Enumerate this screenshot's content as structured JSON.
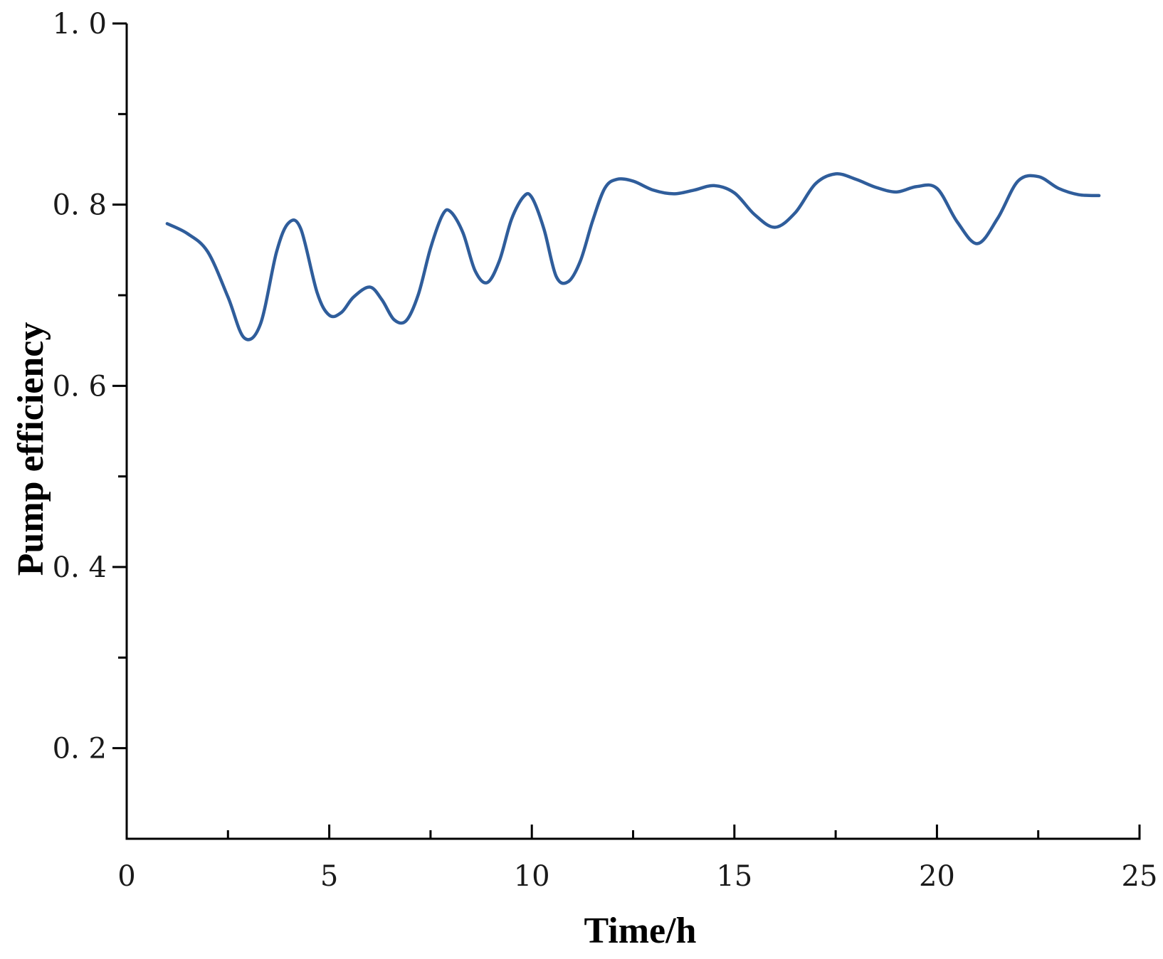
{
  "chart_data": {
    "type": "line",
    "title": "",
    "xlabel": "Time/h",
    "ylabel": "Pump efficiency",
    "xlim": [
      0,
      25
    ],
    "ylim": [
      0.1,
      1.0
    ],
    "x_major_ticks": [
      0,
      5,
      10,
      15,
      20,
      25
    ],
    "x_minor_ticks": [
      2.5,
      7.5,
      12.5,
      17.5,
      22.5
    ],
    "y_major_ticks": [
      0.2,
      0.4,
      0.6,
      0.8,
      1.0
    ],
    "y_minor_ticks": [
      0.3,
      0.5,
      0.7,
      0.9
    ],
    "x_tick_labels": [
      "0",
      "5",
      "10",
      "15",
      "20",
      "25"
    ],
    "y_tick_labels": [
      "0. 2",
      "0. 4",
      "0. 6",
      "0. 8",
      "1. 0"
    ],
    "grid": false,
    "series": [
      {
        "color": "#2f5d9b",
        "x": [
          1.0,
          1.5,
          2.0,
          2.5,
          2.9,
          3.3,
          3.7,
          4.0,
          4.3,
          4.7,
          5.0,
          5.3,
          5.6,
          6.0,
          6.3,
          6.6,
          6.9,
          7.2,
          7.5,
          7.8,
          8.0,
          8.3,
          8.6,
          8.9,
          9.2,
          9.5,
          9.8,
          10.0,
          10.3,
          10.6,
          10.9,
          11.2,
          11.5,
          11.8,
          12.1,
          12.5,
          13.0,
          13.5,
          14.0,
          14.5,
          15.0,
          15.5,
          16.0,
          16.5,
          17.0,
          17.5,
          18.0,
          18.5,
          19.0,
          19.5,
          20.0,
          20.5,
          21.0,
          21.5,
          22.0,
          22.5,
          23.0,
          23.5,
          24.0
        ],
        "y": [
          0.779,
          0.768,
          0.748,
          0.698,
          0.653,
          0.668,
          0.748,
          0.78,
          0.773,
          0.703,
          0.678,
          0.681,
          0.698,
          0.709,
          0.695,
          0.673,
          0.672,
          0.701,
          0.752,
          0.789,
          0.792,
          0.769,
          0.727,
          0.714,
          0.738,
          0.784,
          0.809,
          0.808,
          0.773,
          0.721,
          0.715,
          0.738,
          0.782,
          0.818,
          0.828,
          0.826,
          0.816,
          0.812,
          0.816,
          0.821,
          0.813,
          0.789,
          0.775,
          0.791,
          0.823,
          0.834,
          0.828,
          0.819,
          0.814,
          0.82,
          0.818,
          0.781,
          0.757,
          0.785,
          0.826,
          0.831,
          0.818,
          0.811,
          0.81
        ]
      }
    ]
  }
}
